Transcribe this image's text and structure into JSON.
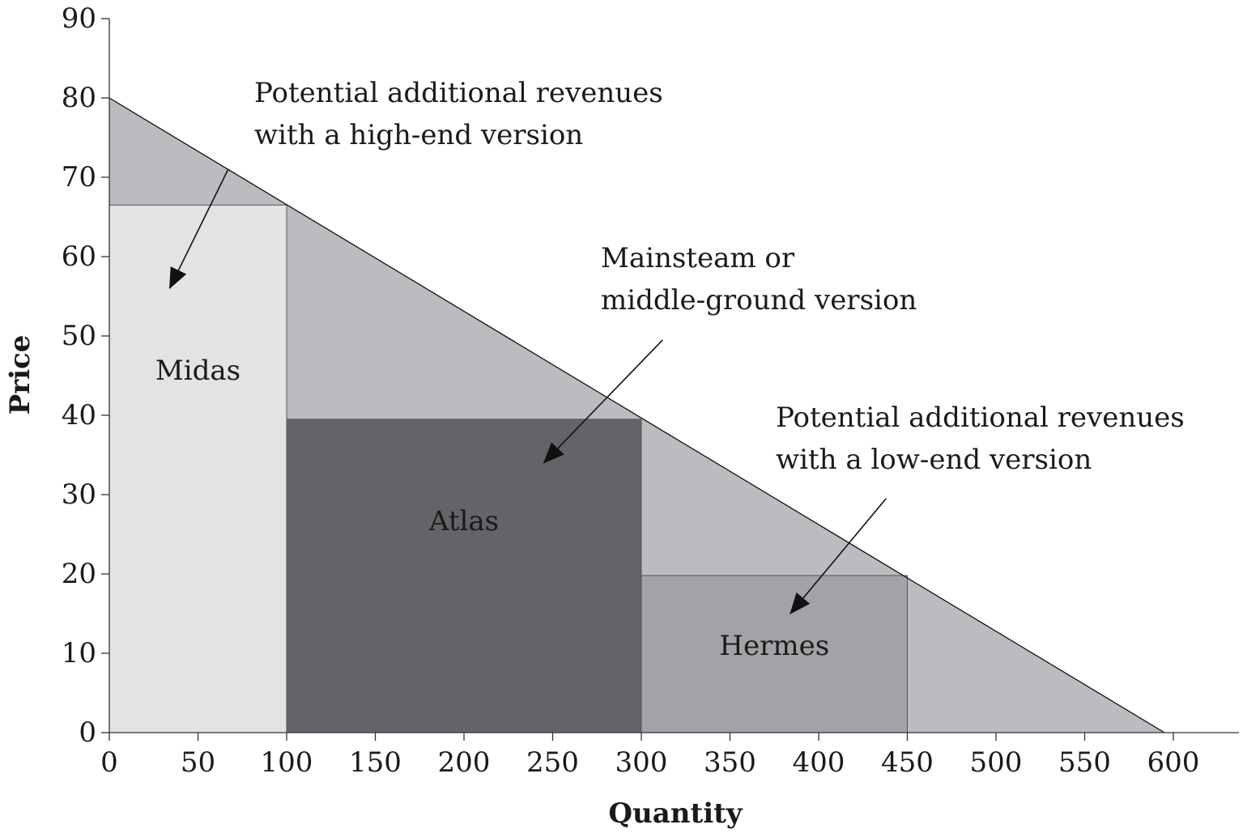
{
  "chart_data": {
    "type": "area",
    "title": "",
    "xlabel": "Quantity",
    "ylabel": "Price",
    "xlim": [
      0,
      640
    ],
    "ylim": [
      0,
      90
    ],
    "x_ticks": [
      0,
      50,
      100,
      150,
      200,
      250,
      300,
      350,
      400,
      450,
      500,
      550,
      600
    ],
    "y_ticks": [
      0,
      10,
      20,
      30,
      40,
      50,
      60,
      70,
      80,
      90
    ],
    "grid": false,
    "demand_curve": {
      "x": [
        0,
        595
      ],
      "y": [
        80,
        0
      ]
    },
    "versions": [
      {
        "name": "Midas",
        "x0": 0,
        "x1": 100,
        "price": 66.5,
        "color": "#e3e3e3"
      },
      {
        "name": "Atlas",
        "x0": 100,
        "x1": 300,
        "price": 39.5,
        "color": "#636467"
      },
      {
        "name": "Hermes",
        "x0": 300,
        "x1": 450,
        "price": 19.8,
        "color": "#a2a3a6"
      }
    ],
    "surplus_color": "#bcbcc0",
    "annotations": [
      {
        "lines": [
          "Potential additional revenues",
          "with a high-end version"
        ],
        "arrow_from": [
          67,
          71
        ],
        "arrow_to": [
          34,
          56
        ]
      },
      {
        "lines": [
          "Mainsteam or",
          "middle-ground version"
        ],
        "arrow_from": [
          312,
          49.5
        ],
        "arrow_to": [
          245,
          34
        ]
      },
      {
        "lines": [
          "Potential additional revenues",
          "with a low-end version"
        ],
        "arrow_from": [
          438,
          29.5
        ],
        "arrow_to": [
          384,
          15
        ]
      }
    ]
  }
}
